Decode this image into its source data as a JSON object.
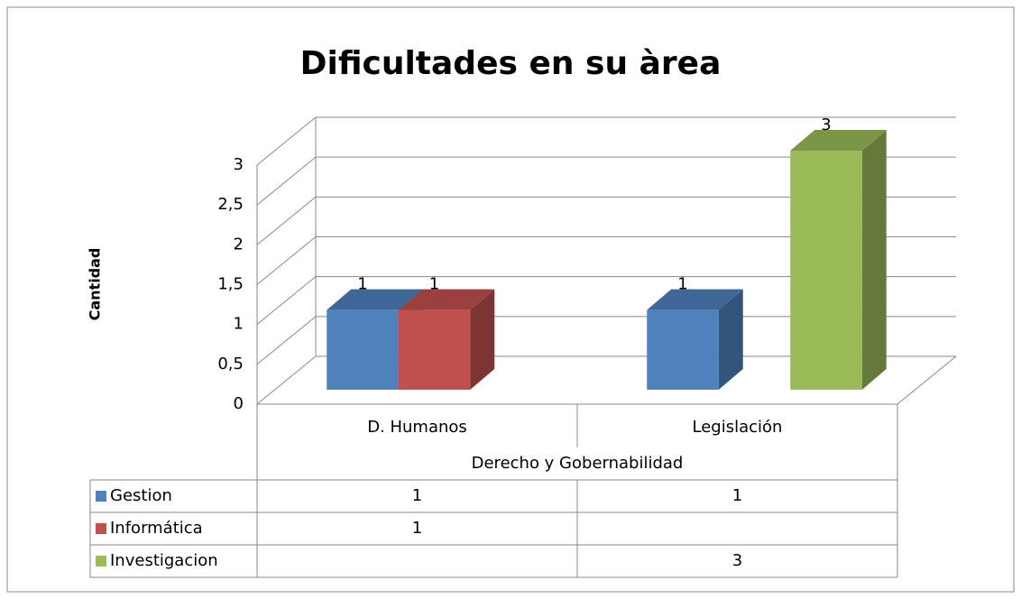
{
  "chart_data": {
    "type": "bar3d",
    "title": "Dificultades en su àrea",
    "y_label": "Cantidad",
    "group_label": "Derecho y Gobernabilidad",
    "categories": [
      "D. Humanos",
      "Legislación"
    ],
    "series": [
      {
        "name": "Gestion",
        "color": "#4f81bd",
        "values": [
          1,
          1
        ]
      },
      {
        "name": "Informática",
        "color": "#c0504d",
        "values": [
          1,
          null
        ]
      },
      {
        "name": "Investigacion",
        "color": "#9bbb59",
        "values": [
          null,
          3
        ]
      }
    ],
    "ylim": [
      0,
      3
    ],
    "yticks": [
      0,
      {
        "value": 0.5,
        "label": "0,5"
      },
      1,
      {
        "value": 1.5,
        "label": "1,5"
      },
      2,
      {
        "value": 2.5,
        "label": "2,5"
      },
      3
    ],
    "grid": true,
    "data_table": true
  }
}
